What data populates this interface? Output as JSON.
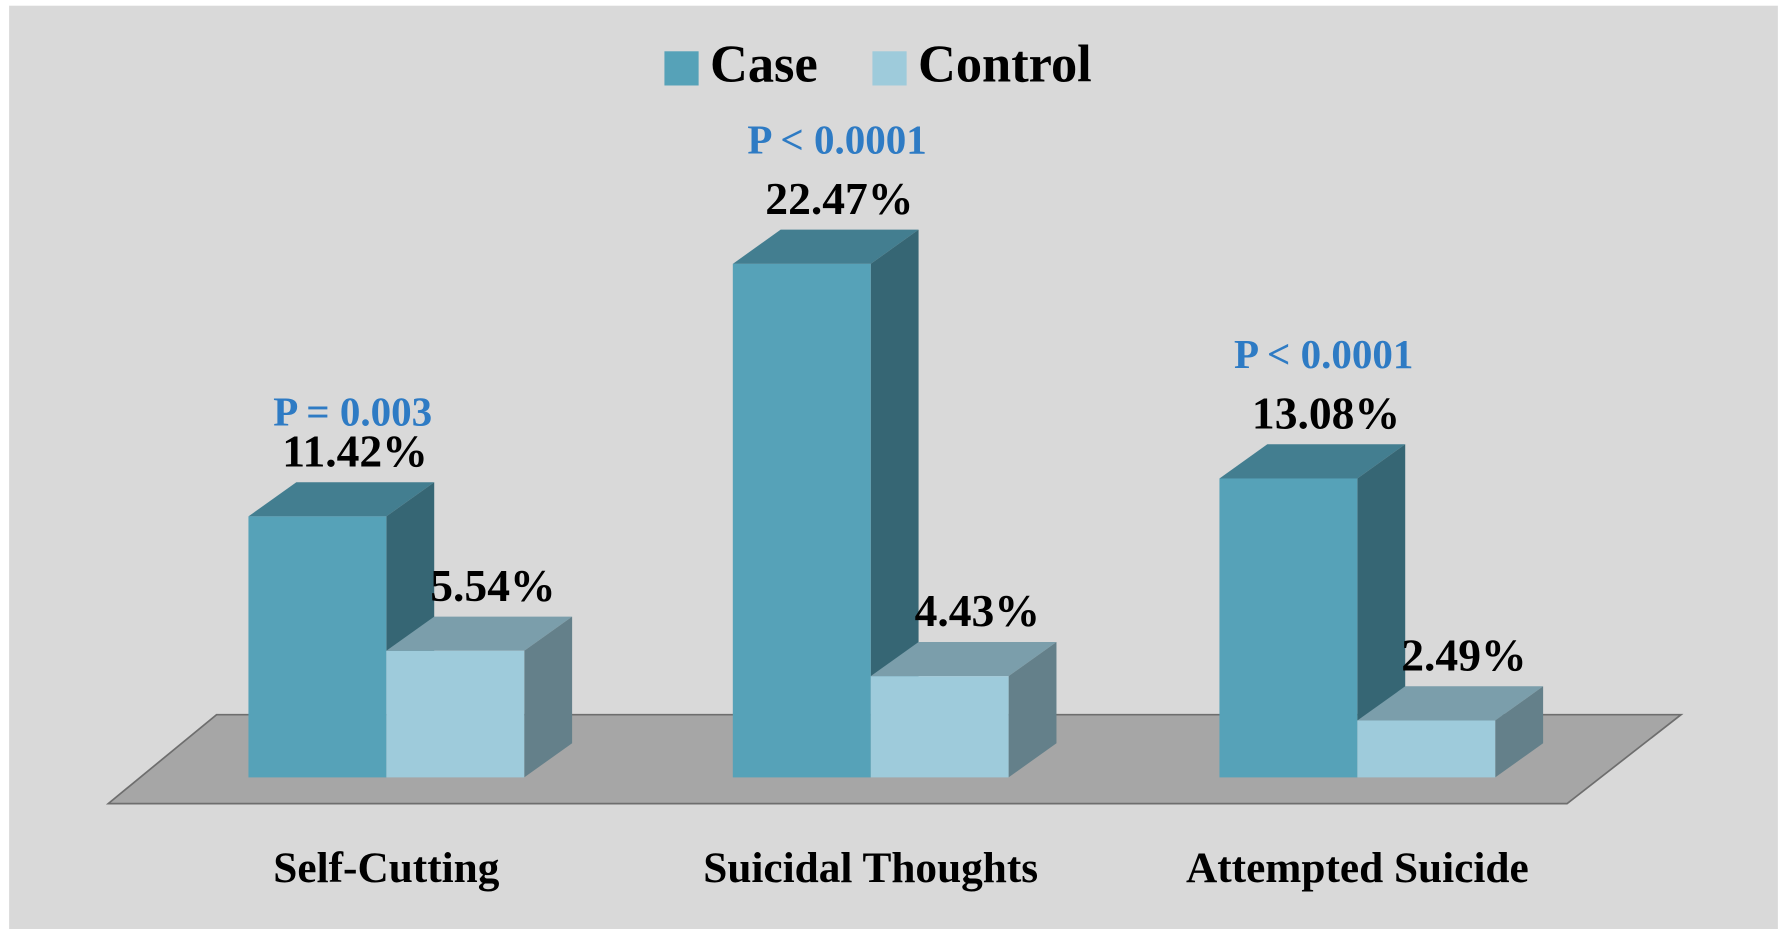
{
  "chart_data": {
    "type": "bar",
    "categories": [
      "Self-Cutting",
      "Suicidal Thoughts",
      "Attempted Suicide"
    ],
    "series": [
      {
        "name": "Case",
        "color": "#56a2b8",
        "values": [
          11.42,
          22.47,
          13.08
        ],
        "value_labels": [
          "11.42%",
          "22.47%",
          "13.08%"
        ]
      },
      {
        "name": "Control",
        "color": "#9ecbdb",
        "values": [
          5.54,
          4.43,
          2.49
        ],
        "value_labels": [
          "5.54%",
          "4.43%",
          "2.49%"
        ]
      }
    ],
    "annotations": [
      "P = 0.003",
      "P < 0.0001",
      "P < 0.0001"
    ],
    "annotation_color": "#2e7bc4"
  }
}
